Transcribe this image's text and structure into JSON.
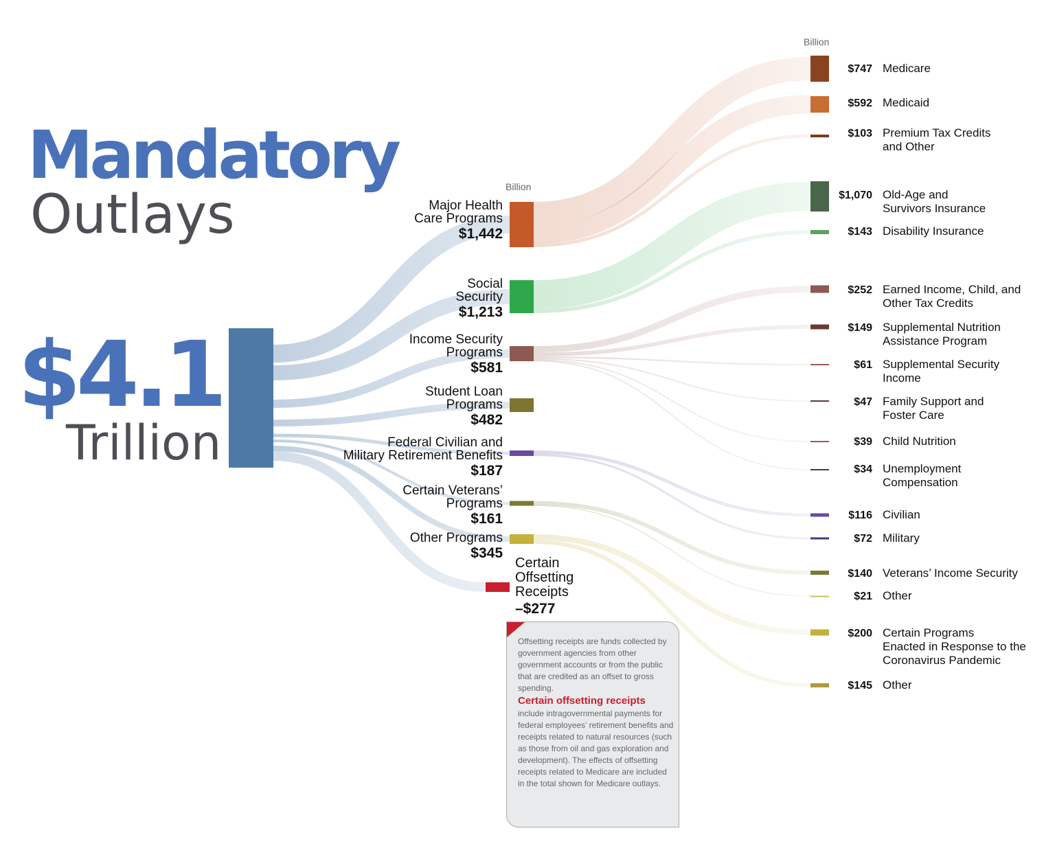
{
  "title": {
    "main": "Mandatory",
    "sub": "Outlays"
  },
  "total": {
    "value": "$4.1",
    "unit": "Trillion"
  },
  "unit_labels": {
    "middle": "Billion",
    "right": "Billion"
  },
  "source_color": "#4e79a7",
  "categories": [
    {
      "id": "health",
      "label_lines": [
        "Major Health",
        "Care Programs"
      ],
      "value_text": "$1,442",
      "value": 1442,
      "color": "#c45a2a",
      "children": [
        {
          "label_lines": [
            "Medicare"
          ],
          "value_text": "$747",
          "value": 747,
          "color": "#8a4320"
        },
        {
          "label_lines": [
            "Medicaid"
          ],
          "value_text": "$592",
          "value": 592,
          "color": "#c96d33"
        },
        {
          "label_lines": [
            "Premium Tax Credits",
            "and Other"
          ],
          "value_text": "$103",
          "value": 103,
          "color": "#7c3a1a"
        }
      ]
    },
    {
      "id": "social",
      "label_lines": [
        "Social",
        "Security"
      ],
      "value_text": "$1,213",
      "value": 1213,
      "color": "#2ea84a",
      "children": [
        {
          "label_lines": [
            "Old-Age and",
            "Survivors Insurance"
          ],
          "value_text": "$1,070",
          "value": 1070,
          "color": "#49654a"
        },
        {
          "label_lines": [
            "Disability Insurance"
          ],
          "value_text": "$143",
          "value": 143,
          "color": "#5ea063"
        }
      ]
    },
    {
      "id": "income",
      "label_lines": [
        "Income Security",
        "Programs"
      ],
      "value_text": "$581",
      "value": 581,
      "color": "#8c5a52",
      "children": [
        {
          "label_lines": [
            "Earned Income, Child, and",
            "Other Tax Credits"
          ],
          "value_text": "$252",
          "value": 252,
          "color": "#8c5a52"
        },
        {
          "label_lines": [
            "Supplemental Nutrition",
            "Assistance Program"
          ],
          "value_text": "$149",
          "value": 149,
          "color": "#6a3a34"
        },
        {
          "label_lines": [
            "Supplemental Security",
            "Income"
          ],
          "value_text": "$61",
          "value": 61,
          "color": "#9a5a52"
        },
        {
          "label_lines": [
            "Family Support and",
            "Foster Care"
          ],
          "value_text": "$47",
          "value": 47,
          "color": "#5a3a34"
        },
        {
          "label_lines": [
            "Child Nutrition"
          ],
          "value_text": "$39",
          "value": 39,
          "color": "#9a5a52"
        },
        {
          "label_lines": [
            "Unemployment",
            "Compensation"
          ],
          "value_text": "$34",
          "value": 34,
          "color": "#4a3a34"
        }
      ]
    },
    {
      "id": "student",
      "label_lines": [
        "Student Loan",
        "Programs"
      ],
      "value_text": "$482",
      "value": 482,
      "color": "#7e7530",
      "children": []
    },
    {
      "id": "retirement",
      "label_lines": [
        "Federal Civilian and",
        "Military Retirement Benefits"
      ],
      "value_text": "$187",
      "value": 187,
      "color": "#6a4aa0",
      "children": [
        {
          "label_lines": [
            "Civilian"
          ],
          "value_text": "$116",
          "value": 116,
          "color": "#6a4aa0"
        },
        {
          "label_lines": [
            "Military"
          ],
          "value_text": "$72",
          "value": 72,
          "color": "#4a3a80"
        }
      ]
    },
    {
      "id": "veterans",
      "label_lines": [
        "Certain Veterans’",
        "Programs"
      ],
      "value_text": "$161",
      "value": 161,
      "color": "#7a7a35",
      "children": [
        {
          "label_lines": [
            "Veterans’ Income Security"
          ],
          "value_text": "$140",
          "value": 140,
          "color": "#7a7a35"
        },
        {
          "label_lines": [
            "Other"
          ],
          "value_text": "$21",
          "value": 21,
          "color": "#c8c060"
        }
      ]
    },
    {
      "id": "other",
      "label_lines": [
        "Other Programs"
      ],
      "value_text": "$345",
      "value": 345,
      "color": "#c4b03a",
      "children": [
        {
          "label_lines": [
            "Certain Programs",
            "Enacted in Response to the",
            "Coronavirus Pandemic"
          ],
          "value_text": "$200",
          "value": 200,
          "color": "#c4b03a"
        },
        {
          "label_lines": [
            "Other"
          ],
          "value_text": "$145",
          "value": 145,
          "color": "#b09a3a"
        }
      ]
    }
  ],
  "offset": {
    "label_lines": [
      "Certain",
      "Offsetting",
      "Receipts"
    ],
    "value_text": "–$277",
    "value": -277,
    "color": "#c8202f"
  },
  "callout": {
    "intro": "Offsetting receipts are funds collected by government agencies from other government accounts or from the public that are credited as an offset to gross spending.",
    "heading": "Certain offsetting receipts",
    "body": "include intragovernmental payments for federal employees’ retirement benefits and receipts related to natural resources (such as those from oil and gas exploration and development). The effects of offsetting receipts related to Medicare are included in the total shown for Medicare outlays."
  }
}
